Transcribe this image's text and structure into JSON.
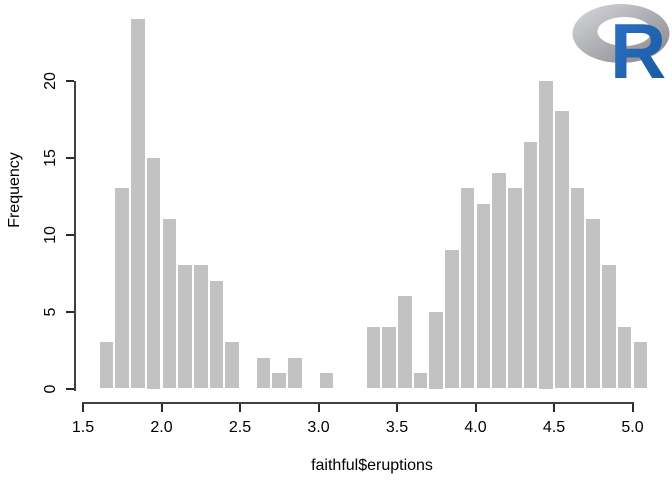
{
  "chart_data": {
    "type": "bar",
    "subtype": "histogram",
    "title": "",
    "xlabel": "faithful$eruptions",
    "ylabel": "Frequency",
    "bin_start": 1.6,
    "bin_width": 0.1,
    "bin_edges": [
      1.6,
      1.7,
      1.8,
      1.9,
      2.0,
      2.1,
      2.2,
      2.3,
      2.4,
      2.5,
      2.6,
      2.7,
      2.8,
      2.9,
      3.0,
      3.1,
      3.2,
      3.3,
      3.4,
      3.5,
      3.6,
      3.7,
      3.8,
      3.9,
      4.0,
      4.1,
      4.2,
      4.3,
      4.4,
      4.5,
      4.6,
      4.7,
      4.8,
      4.9,
      5.0,
      5.1
    ],
    "counts": [
      3,
      13,
      24,
      15,
      11,
      8,
      8,
      7,
      3,
      0,
      2,
      1,
      2,
      0,
      1,
      0,
      0,
      4,
      4,
      6,
      1,
      5,
      9,
      13,
      12,
      14,
      13,
      16,
      20,
      18,
      13,
      11,
      8,
      4,
      3
    ],
    "total_observations": 272,
    "x_ticks": [
      "1.5",
      "2.0",
      "2.5",
      "3.0",
      "3.5",
      "4.0",
      "4.5",
      "5.0"
    ],
    "y_ticks": [
      "0",
      "5",
      "10",
      "15",
      "20"
    ],
    "xlim": [
      1.5,
      5.1
    ],
    "ylim": [
      0,
      24
    ],
    "grid": "off",
    "legend": "none",
    "bar_color": "#c2c2c2",
    "axis_color": "#000000",
    "background_color": "#ffffff"
  },
  "logo": {
    "name": "R logo",
    "letter": "R",
    "ring_color_light": "#d2d5d7",
    "ring_color_dark": "#84838b",
    "letter_color_light": "#2e73c6",
    "letter_color_dark": "#15589e"
  }
}
